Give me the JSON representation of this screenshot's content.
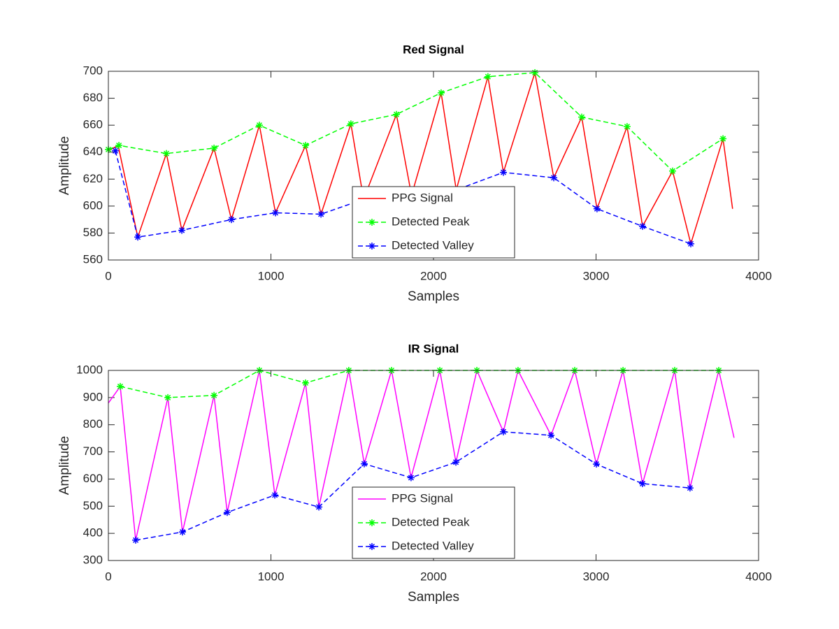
{
  "chart_data": [
    {
      "type": "line",
      "title": "Red Signal",
      "xlabel": "Samples",
      "ylabel": "Amplitude",
      "xlim": [
        0,
        4000
      ],
      "xticks": [
        0,
        1000,
        2000,
        3000,
        4000
      ],
      "ylim": [
        560,
        700
      ],
      "yticks": [
        560,
        580,
        600,
        620,
        640,
        660,
        680,
        700
      ],
      "legend": "south",
      "series": [
        {
          "name": "PPG Signal",
          "color": "#ff0000",
          "linestyle": "solid",
          "marker": "none",
          "x": [
            0,
            60,
            181,
            357,
            452,
            650,
            757,
            929,
            1028,
            1213,
            1308,
            1492,
            1570,
            1772,
            1865,
            2047,
            2140,
            2335,
            2430,
            2624,
            2740,
            2912,
            3006,
            3191,
            3286,
            3471,
            3583,
            3781,
            3840
          ],
          "values": [
            641,
            645,
            577,
            639,
            582,
            643,
            590,
            660,
            595,
            645,
            594,
            661,
            605,
            668,
            608,
            684,
            612,
            696,
            625,
            699,
            621,
            666,
            598,
            659,
            585,
            626,
            572,
            650,
            598
          ]
        },
        {
          "name": "Detected Peak",
          "color": "#00ff00",
          "linestyle": "dashed",
          "marker": "asterisk",
          "x": [
            0,
            65,
            357,
            650,
            929,
            1213,
            1492,
            1772,
            2047,
            2335,
            2624,
            2912,
            3191,
            3471,
            3781
          ],
          "values": [
            642,
            645,
            639,
            643,
            660,
            645,
            661,
            668,
            684,
            696,
            699,
            666,
            659,
            626,
            650
          ]
        },
        {
          "name": "Detected Valley",
          "color": "#0000ff",
          "linestyle": "dashed",
          "marker": "asterisk",
          "x": [
            43,
            181,
            452,
            757,
            1028,
            1308,
            1570,
            1865,
            2140,
            2430,
            2740,
            3006,
            3286,
            3583
          ],
          "values": [
            641,
            577,
            582,
            590,
            595,
            594,
            605,
            608,
            612,
            625,
            621,
            598,
            585,
            572
          ]
        }
      ]
    },
    {
      "type": "line",
      "title": "IR Signal",
      "xlabel": "Samples",
      "ylabel": "Amplitude",
      "xlim": [
        0,
        4000
      ],
      "xticks": [
        0,
        1000,
        2000,
        3000,
        4000
      ],
      "ylim": [
        300,
        1000
      ],
      "yticks": [
        300,
        400,
        500,
        600,
        700,
        800,
        900,
        1000
      ],
      "legend": "south",
      "series": [
        {
          "name": "PPG Signal",
          "color": "#ff00ff",
          "linestyle": "solid",
          "marker": "none",
          "x": [
            0,
            73,
            168,
            366,
            456,
            650,
            731,
            929,
            1024,
            1213,
            1295,
            1479,
            1574,
            1742,
            1862,
            2039,
            2138,
            2267,
            2430,
            2520,
            2723,
            2869,
            3002,
            3166,
            3286,
            3484,
            3578,
            3755,
            3849
          ],
          "values": [
            880,
            941,
            375,
            900,
            405,
            908,
            477,
            1000,
            541,
            954,
            497,
            1000,
            656,
            1000,
            605,
            1000,
            662,
            1000,
            774,
            1000,
            761,
            1000,
            655,
            1000,
            583,
            1000,
            567,
            1000,
            752
          ]
        },
        {
          "name": "Detected Peak",
          "color": "#00ff00",
          "linestyle": "dashed",
          "marker": "asterisk",
          "x": [
            73,
            366,
            650,
            929,
            1213,
            1479,
            1742,
            2039,
            2267,
            2520,
            2869,
            3166,
            3484,
            3755
          ],
          "values": [
            941,
            900,
            908,
            1000,
            954,
            1000,
            1000,
            1000,
            1000,
            1000,
            1000,
            1000,
            1000,
            1000
          ]
        },
        {
          "name": "Detected Valley",
          "color": "#0000ff",
          "linestyle": "dashed",
          "marker": "asterisk",
          "x": [
            168,
            456,
            731,
            1024,
            1295,
            1574,
            1862,
            2138,
            2430,
            2723,
            3002,
            3286,
            3578
          ],
          "values": [
            375,
            405,
            477,
            541,
            497,
            656,
            605,
            662,
            774,
            761,
            655,
            583,
            567
          ]
        }
      ]
    }
  ]
}
